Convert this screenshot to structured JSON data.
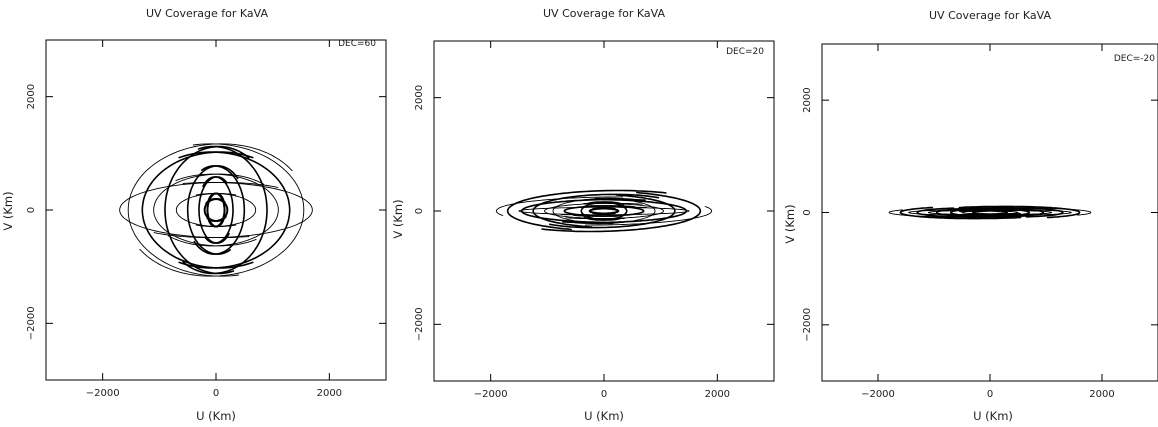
{
  "chart_data": [
    {
      "type": "scatter",
      "title": "UV Coverage for KaVA",
      "xlabel": "U (Km)",
      "ylabel": "V (Km)",
      "annotation": "DEC=60",
      "xlim": [
        -3000,
        3000
      ],
      "ylim": [
        -3000,
        3000
      ],
      "xticks": [
        -2000,
        0,
        2000
      ],
      "yticks": [
        -2000,
        0,
        2000
      ],
      "grid": false,
      "tracks": [
        {
          "u": 900,
          "v": 1150,
          "ha_range": [
            50,
            290
          ],
          "stroke": 1.6
        },
        {
          "u": 500,
          "v": 800,
          "ha_range": [
            40,
            300
          ],
          "stroke": 1.6
        },
        {
          "u": 1300,
          "v": 1050,
          "ha_range": [
            60,
            300
          ],
          "stroke": 1.6
        },
        {
          "u": 1550,
          "v": 1200,
          "ha_range": [
            30,
            285
          ],
          "stroke": 0.9
        },
        {
          "u": 300,
          "v": 600,
          "ha_range": [
            50,
            320
          ],
          "stroke": 1.6
        },
        {
          "u": 700,
          "v": 300,
          "ha_range": [
            60,
            300
          ],
          "stroke": 0.9
        },
        {
          "u": 1100,
          "v": 650,
          "ha_range": [
            40,
            310
          ],
          "stroke": 0.9
        },
        {
          "u": 1700,
          "v": 500,
          "ha_range": [
            50,
            290
          ],
          "stroke": 0.9
        },
        {
          "u": 200,
          "v": 200,
          "ha_range": [
            40,
            330
          ],
          "stroke": 2.0
        },
        {
          "u": 150,
          "v": 300,
          "ha_range": [
            30,
            340
          ],
          "stroke": 2.0
        }
      ]
    },
    {
      "type": "scatter",
      "title": "UV Coverage for KaVA",
      "xlabel": "U (Km)",
      "ylabel": "V (Km)",
      "annotation": "DEC=20",
      "xlim": [
        -3000,
        3000
      ],
      "ylim": [
        -3000,
        3000
      ],
      "xticks": [
        -2000,
        0,
        2000
      ],
      "yticks": [
        -2000,
        0,
        2000
      ],
      "grid": false,
      "tracks": [
        {
          "u": 1700,
          "v": 800,
          "ha_range": [
            50,
            250
          ],
          "stroke": 1.6
        },
        {
          "u": 1250,
          "v": 650,
          "ha_range": [
            40,
            260
          ],
          "stroke": 1.6
        },
        {
          "u": 1450,
          "v": 450,
          "ha_range": [
            60,
            270
          ],
          "stroke": 1.6
        },
        {
          "u": 900,
          "v": 500,
          "ha_range": [
            40,
            280
          ],
          "stroke": 0.9
        },
        {
          "u": 1050,
          "v": 300,
          "ha_range": [
            50,
            290
          ],
          "stroke": 0.9
        },
        {
          "u": 700,
          "v": 200,
          "ha_range": [
            40,
            290
          ],
          "stroke": 1.6
        },
        {
          "u": 1500,
          "v": 150,
          "ha_range": [
            60,
            260
          ],
          "stroke": 0.9
        },
        {
          "u": 400,
          "v": 350,
          "ha_range": [
            30,
            320
          ],
          "stroke": 1.6
        },
        {
          "u": 250,
          "v": 100,
          "ha_range": [
            40,
            320
          ],
          "stroke": 2.0
        },
        {
          "u": 1900,
          "v": 550,
          "ha_range": [
            80,
            200
          ],
          "stroke": 0.9
        }
      ]
    },
    {
      "type": "scatter",
      "title": "UV Coverage for KaVA",
      "xlabel": "U (Km)",
      "ylabel": "V (Km)",
      "annotation": "DEC=-20",
      "xlim": [
        -3000,
        3000
      ],
      "ylim": [
        -3000,
        3000
      ],
      "xticks": [
        -2000,
        0,
        2000
      ],
      "yticks": [
        -2000,
        0,
        2000
      ],
      "grid": false,
      "tracks": [
        {
          "u": 1600,
          "v": 450,
          "ha_range": [
            70,
            230
          ],
          "stroke": 1.6
        },
        {
          "u": 1300,
          "v": 350,
          "ha_range": [
            60,
            240
          ],
          "stroke": 1.6
        },
        {
          "u": 1450,
          "v": 200,
          "ha_range": [
            70,
            250
          ],
          "stroke": 0.9
        },
        {
          "u": 950,
          "v": 300,
          "ha_range": [
            50,
            260
          ],
          "stroke": 1.6
        },
        {
          "u": 1100,
          "v": 150,
          "ha_range": [
            60,
            260
          ],
          "stroke": 0.9
        },
        {
          "u": 700,
          "v": 250,
          "ha_range": [
            40,
            280
          ],
          "stroke": 1.6
        },
        {
          "u": 500,
          "v": 100,
          "ha_range": [
            50,
            290
          ],
          "stroke": 0.9
        },
        {
          "u": 300,
          "v": 150,
          "ha_range": [
            40,
            300
          ],
          "stroke": 2.0
        },
        {
          "u": 1800,
          "v": 350,
          "ha_range": [
            80,
            210
          ],
          "stroke": 0.9
        }
      ]
    }
  ]
}
